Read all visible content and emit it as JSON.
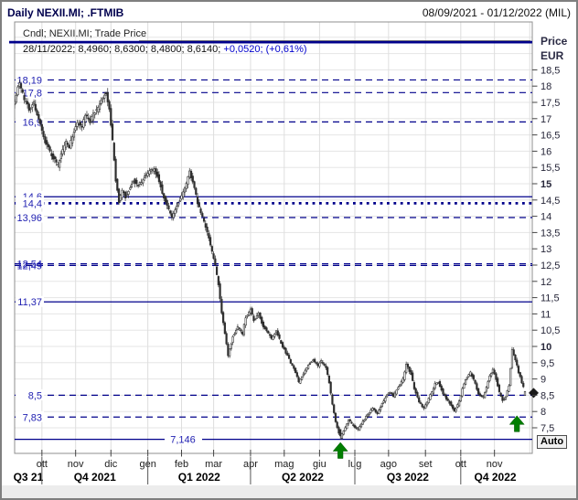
{
  "window": {
    "title": "Daily NEXII.MI; .FTMIB",
    "date_range": "08/09/2021 - 01/12/2022 (MIL)"
  },
  "legend": {
    "line1": "Cndl; NEXII.MI; Trade Price",
    "line2_ohlc": "28/11/2022; 8,4960; 8,6300; 8,4800; 8,6140; ",
    "line2_change": "+0,0520; (+0,61%)"
  },
  "price_axis": {
    "title": "Price",
    "currency": "EUR",
    "auto_button": "Auto",
    "ticks": [
      {
        "label": "18,5",
        "value": 18.5,
        "bold": false
      },
      {
        "label": "18",
        "value": 18,
        "bold": false
      },
      {
        "label": "17,5",
        "value": 17.5,
        "bold": false
      },
      {
        "label": "17",
        "value": 17,
        "bold": false
      },
      {
        "label": "16,5",
        "value": 16.5,
        "bold": false
      },
      {
        "label": "16",
        "value": 16,
        "bold": false
      },
      {
        "label": "15,5",
        "value": 15.5,
        "bold": false
      },
      {
        "label": "15",
        "value": 15,
        "bold": true
      },
      {
        "label": "14,5",
        "value": 14.5,
        "bold": false
      },
      {
        "label": "14",
        "value": 14,
        "bold": false
      },
      {
        "label": "13,5",
        "value": 13.5,
        "bold": false
      },
      {
        "label": "13",
        "value": 13,
        "bold": false
      },
      {
        "label": "12,5",
        "value": 12.5,
        "bold": false
      },
      {
        "label": "12",
        "value": 12,
        "bold": false
      },
      {
        "label": "11,5",
        "value": 11.5,
        "bold": false
      },
      {
        "label": "11",
        "value": 11,
        "bold": false
      },
      {
        "label": "10,5",
        "value": 10.5,
        "bold": false
      },
      {
        "label": "10",
        "value": 10,
        "bold": true
      },
      {
        "label": "9,5",
        "value": 9.5,
        "bold": false
      },
      {
        "label": "9",
        "value": 9,
        "bold": false
      },
      {
        "label": "8,5",
        "value": 8.5,
        "bold": false
      },
      {
        "label": "8",
        "value": 8,
        "bold": false
      },
      {
        "label": "7,5",
        "value": 7.5,
        "bold": false
      }
    ]
  },
  "x_axis": {
    "months": [
      {
        "label": "ott",
        "date": "2021-10-01"
      },
      {
        "label": "nov",
        "date": "2021-11-01"
      },
      {
        "label": "dic",
        "date": "2021-12-01"
      },
      {
        "label": "gen",
        "date": "2022-01-01"
      },
      {
        "label": "feb",
        "date": "2022-02-01"
      },
      {
        "label": "mar",
        "date": "2022-03-01"
      },
      {
        "label": "apr",
        "date": "2022-04-01"
      },
      {
        "label": "mag",
        "date": "2022-05-01"
      },
      {
        "label": "giu",
        "date": "2022-06-01"
      },
      {
        "label": "lug",
        "date": "2022-07-01"
      },
      {
        "label": "ago",
        "date": "2022-08-01"
      },
      {
        "label": "set",
        "date": "2022-09-01"
      },
      {
        "label": "ott",
        "date": "2022-10-01"
      },
      {
        "label": "nov",
        "date": "2022-11-01"
      }
    ],
    "grid_extra_dates": [
      "2022-12-01"
    ],
    "quarters": [
      {
        "label": "Q3 21",
        "start": "2021-09-08",
        "end": "2021-10-01"
      },
      {
        "label": "Q4 2021",
        "start": "2021-10-01",
        "end": "2022-01-01"
      },
      {
        "label": "Q1 2022",
        "start": "2022-01-01",
        "end": "2022-04-01"
      },
      {
        "label": "Q2 2022",
        "start": "2022-04-01",
        "end": "2022-07-01"
      },
      {
        "label": "Q3 2022",
        "start": "2022-07-01",
        "end": "2022-10-01"
      },
      {
        "label": "Q4 2022",
        "start": "2022-10-01",
        "end": "2022-12-01"
      }
    ]
  },
  "annotations": {
    "levels": [
      {
        "label": "",
        "price": 19.35,
        "style": "thick",
        "bg": false
      },
      {
        "label": "18,19",
        "price": 18.19,
        "style": "dashed",
        "bg": true
      },
      {
        "label": "17,8",
        "price": 17.8,
        "style": "dashed",
        "bg": true
      },
      {
        "label": "16,9",
        "price": 16.9,
        "style": "dashed",
        "bg": true
      },
      {
        "label": "14,6",
        "price": 14.6,
        "style": "solid",
        "bg": true
      },
      {
        "label": "14,4",
        "price": 14.4,
        "style": "dotted",
        "bg": true
      },
      {
        "label": "13,96",
        "price": 13.96,
        "style": "dashed",
        "bg": true
      },
      {
        "label": "12,54",
        "price": 12.54,
        "style": "dashed",
        "bg": false
      },
      {
        "label": "12,49",
        "price": 12.49,
        "style": "dashed",
        "bg": false
      },
      {
        "label": "11,37",
        "price": 11.37,
        "style": "solid",
        "bg": true
      },
      {
        "label": "8,5",
        "price": 8.5,
        "style": "dashed",
        "bg": true
      },
      {
        "label": "7,83",
        "price": 7.83,
        "style": "dashed",
        "bg": true
      },
      {
        "label": "7,146",
        "price": 7.146,
        "style": "solid",
        "bg": true,
        "inline": true
      }
    ],
    "arrows": [
      {
        "date": "2022-06-20",
        "tip_price": 7.05
      },
      {
        "date": "2022-11-21",
        "tip_price": 7.87
      }
    ],
    "last_price_marker": {
      "price": 8.57
    }
  },
  "chart_data": {
    "type": "candlestick",
    "instrument": "NEXII.MI",
    "interval": "daily",
    "currency": "EUR",
    "title": "Cndl; NEXII.MI; Trade Price",
    "start_date": "2021-09-08",
    "end_date": "2022-11-28",
    "visible_price_range": [
      7.0,
      19.5
    ],
    "last_candle": {
      "date": "2022-11-28",
      "open": 8.496,
      "high": 8.63,
      "low": 8.48,
      "close": 8.614,
      "change": 0.052,
      "change_pct": 0.61
    },
    "waypoints": [
      [
        "2021-09-08",
        17.5
      ],
      [
        "2021-09-10",
        17.95
      ],
      [
        "2021-09-13",
        18.1
      ],
      [
        "2021-09-16",
        17.6
      ],
      [
        "2021-09-21",
        17.3
      ],
      [
        "2021-09-24",
        17.5
      ],
      [
        "2021-09-28",
        17.1
      ],
      [
        "2021-09-30",
        16.8
      ],
      [
        "2021-10-04",
        16.4
      ],
      [
        "2021-10-07",
        16.1
      ],
      [
        "2021-10-12",
        15.8
      ],
      [
        "2021-10-15",
        15.55
      ],
      [
        "2021-10-19",
        15.9
      ],
      [
        "2021-10-22",
        16.3
      ],
      [
        "2021-10-26",
        16.15
      ],
      [
        "2021-10-29",
        16.6
      ],
      [
        "2021-11-02",
        16.9
      ],
      [
        "2021-11-05",
        16.75
      ],
      [
        "2021-11-09",
        17.1
      ],
      [
        "2021-11-12",
        16.9
      ],
      [
        "2021-11-16",
        17.15
      ],
      [
        "2021-11-19",
        17.3
      ],
      [
        "2021-11-23",
        17.55
      ],
      [
        "2021-11-26",
        17.8
      ],
      [
        "2021-11-30",
        17.25
      ],
      [
        "2021-12-02",
        16.3
      ],
      [
        "2021-12-06",
        15.1
      ],
      [
        "2021-12-08",
        14.45
      ],
      [
        "2021-12-10",
        14.8
      ],
      [
        "2021-12-14",
        14.6
      ],
      [
        "2021-12-17",
        14.9
      ],
      [
        "2021-12-21",
        15.1
      ],
      [
        "2021-12-24",
        14.95
      ],
      [
        "2021-12-30",
        15.2
      ],
      [
        "2022-01-04",
        15.4
      ],
      [
        "2022-01-07",
        15.45
      ],
      [
        "2022-01-12",
        15.1
      ],
      [
        "2022-01-14",
        14.7
      ],
      [
        "2022-01-19",
        14.35
      ],
      [
        "2022-01-24",
        13.95
      ],
      [
        "2022-01-27",
        14.3
      ],
      [
        "2022-01-31",
        14.5
      ],
      [
        "2022-02-03",
        14.9
      ],
      [
        "2022-02-08",
        15.35
      ],
      [
        "2022-02-11",
        14.9
      ],
      [
        "2022-02-15",
        14.4
      ],
      [
        "2022-02-18",
        14.0
      ],
      [
        "2022-02-23",
        13.5
      ],
      [
        "2022-02-28",
        12.9
      ],
      [
        "2022-03-02",
        12.5
      ],
      [
        "2022-03-04",
        11.9
      ],
      [
        "2022-03-08",
        11.0
      ],
      [
        "2022-03-10",
        10.4
      ],
      [
        "2022-03-14",
        9.7
      ],
      [
        "2022-03-17",
        10.3
      ],
      [
        "2022-03-22",
        10.6
      ],
      [
        "2022-03-25",
        10.4
      ],
      [
        "2022-03-29",
        10.9
      ],
      [
        "2022-04-01",
        11.15
      ],
      [
        "2022-04-05",
        10.8
      ],
      [
        "2022-04-08",
        11.0
      ],
      [
        "2022-04-13",
        10.6
      ],
      [
        "2022-04-20",
        10.25
      ],
      [
        "2022-04-25",
        10.45
      ],
      [
        "2022-04-28",
        10.1
      ],
      [
        "2022-05-03",
        9.8
      ],
      [
        "2022-05-06",
        9.5
      ],
      [
        "2022-05-11",
        9.2
      ],
      [
        "2022-05-13",
        8.9
      ],
      [
        "2022-05-18",
        9.15
      ],
      [
        "2022-05-23",
        9.45
      ],
      [
        "2022-05-26",
        9.6
      ],
      [
        "2022-05-31",
        9.4
      ],
      [
        "2022-06-02",
        9.55
      ],
      [
        "2022-06-07",
        9.35
      ],
      [
        "2022-06-09",
        8.9
      ],
      [
        "2022-06-13",
        8.2
      ],
      [
        "2022-06-15",
        7.7
      ],
      [
        "2022-06-17",
        7.35
      ],
      [
        "2022-06-20",
        7.2
      ],
      [
        "2022-06-23",
        7.5
      ],
      [
        "2022-06-27",
        7.75
      ],
      [
        "2022-06-30",
        7.55
      ],
      [
        "2022-07-05",
        7.45
      ],
      [
        "2022-07-08",
        7.7
      ],
      [
        "2022-07-13",
        7.9
      ],
      [
        "2022-07-18",
        8.1
      ],
      [
        "2022-07-21",
        7.95
      ],
      [
        "2022-07-26",
        8.25
      ],
      [
        "2022-07-29",
        8.5
      ],
      [
        "2022-08-02",
        8.6
      ],
      [
        "2022-08-04",
        8.45
      ],
      [
        "2022-08-09",
        8.75
      ],
      [
        "2022-08-12",
        9.0
      ],
      [
        "2022-08-16",
        9.45
      ],
      [
        "2022-08-19",
        9.15
      ],
      [
        "2022-08-23",
        8.7
      ],
      [
        "2022-08-26",
        8.3
      ],
      [
        "2022-08-31",
        8.1
      ],
      [
        "2022-09-02",
        8.3
      ],
      [
        "2022-09-07",
        8.6
      ],
      [
        "2022-09-09",
        8.85
      ],
      [
        "2022-09-13",
        8.9
      ],
      [
        "2022-09-16",
        8.55
      ],
      [
        "2022-09-20",
        8.4
      ],
      [
        "2022-09-23",
        8.2
      ],
      [
        "2022-09-27",
        8.0
      ],
      [
        "2022-09-30",
        8.3
      ],
      [
        "2022-10-04",
        8.7
      ],
      [
        "2022-10-06",
        9.0
      ],
      [
        "2022-10-11",
        9.2
      ],
      [
        "2022-10-14",
        8.85
      ],
      [
        "2022-10-18",
        8.55
      ],
      [
        "2022-10-21",
        8.45
      ],
      [
        "2022-10-25",
        8.75
      ],
      [
        "2022-10-27",
        9.1
      ],
      [
        "2022-10-31",
        9.3
      ],
      [
        "2022-11-02",
        9.0
      ],
      [
        "2022-11-04",
        8.6
      ],
      [
        "2022-11-08",
        8.35
      ],
      [
        "2022-11-10",
        8.45
      ],
      [
        "2022-11-14",
        8.8
      ],
      [
        "2022-11-15",
        9.3
      ],
      [
        "2022-11-16",
        9.9
      ],
      [
        "2022-11-18",
        9.6
      ],
      [
        "2022-11-22",
        9.2
      ],
      [
        "2022-11-24",
        8.9
      ],
      [
        "2022-11-28",
        8.614
      ]
    ],
    "key_candles": [
      {
        "date": "2021-09-13",
        "high": 18.19
      },
      {
        "date": "2022-06-20",
        "open": 7.45,
        "low": 7.146,
        "close": 7.25
      },
      {
        "date": "2022-11-16",
        "open": 9.35,
        "high": 9.98,
        "low": 9.3,
        "close": 9.9
      },
      {
        "date": "2022-11-28",
        "open": 8.496,
        "high": 8.63,
        "low": 8.48,
        "close": 8.614
      }
    ]
  },
  "colors": {
    "navy_line": "#00008b",
    "level_label": "#2222b2",
    "change_text": "#0000cd",
    "candle": "#2e2e2e",
    "arrow_green": "#007e00",
    "grid": "#e5e5e5",
    "title_navy": "#00004e"
  }
}
